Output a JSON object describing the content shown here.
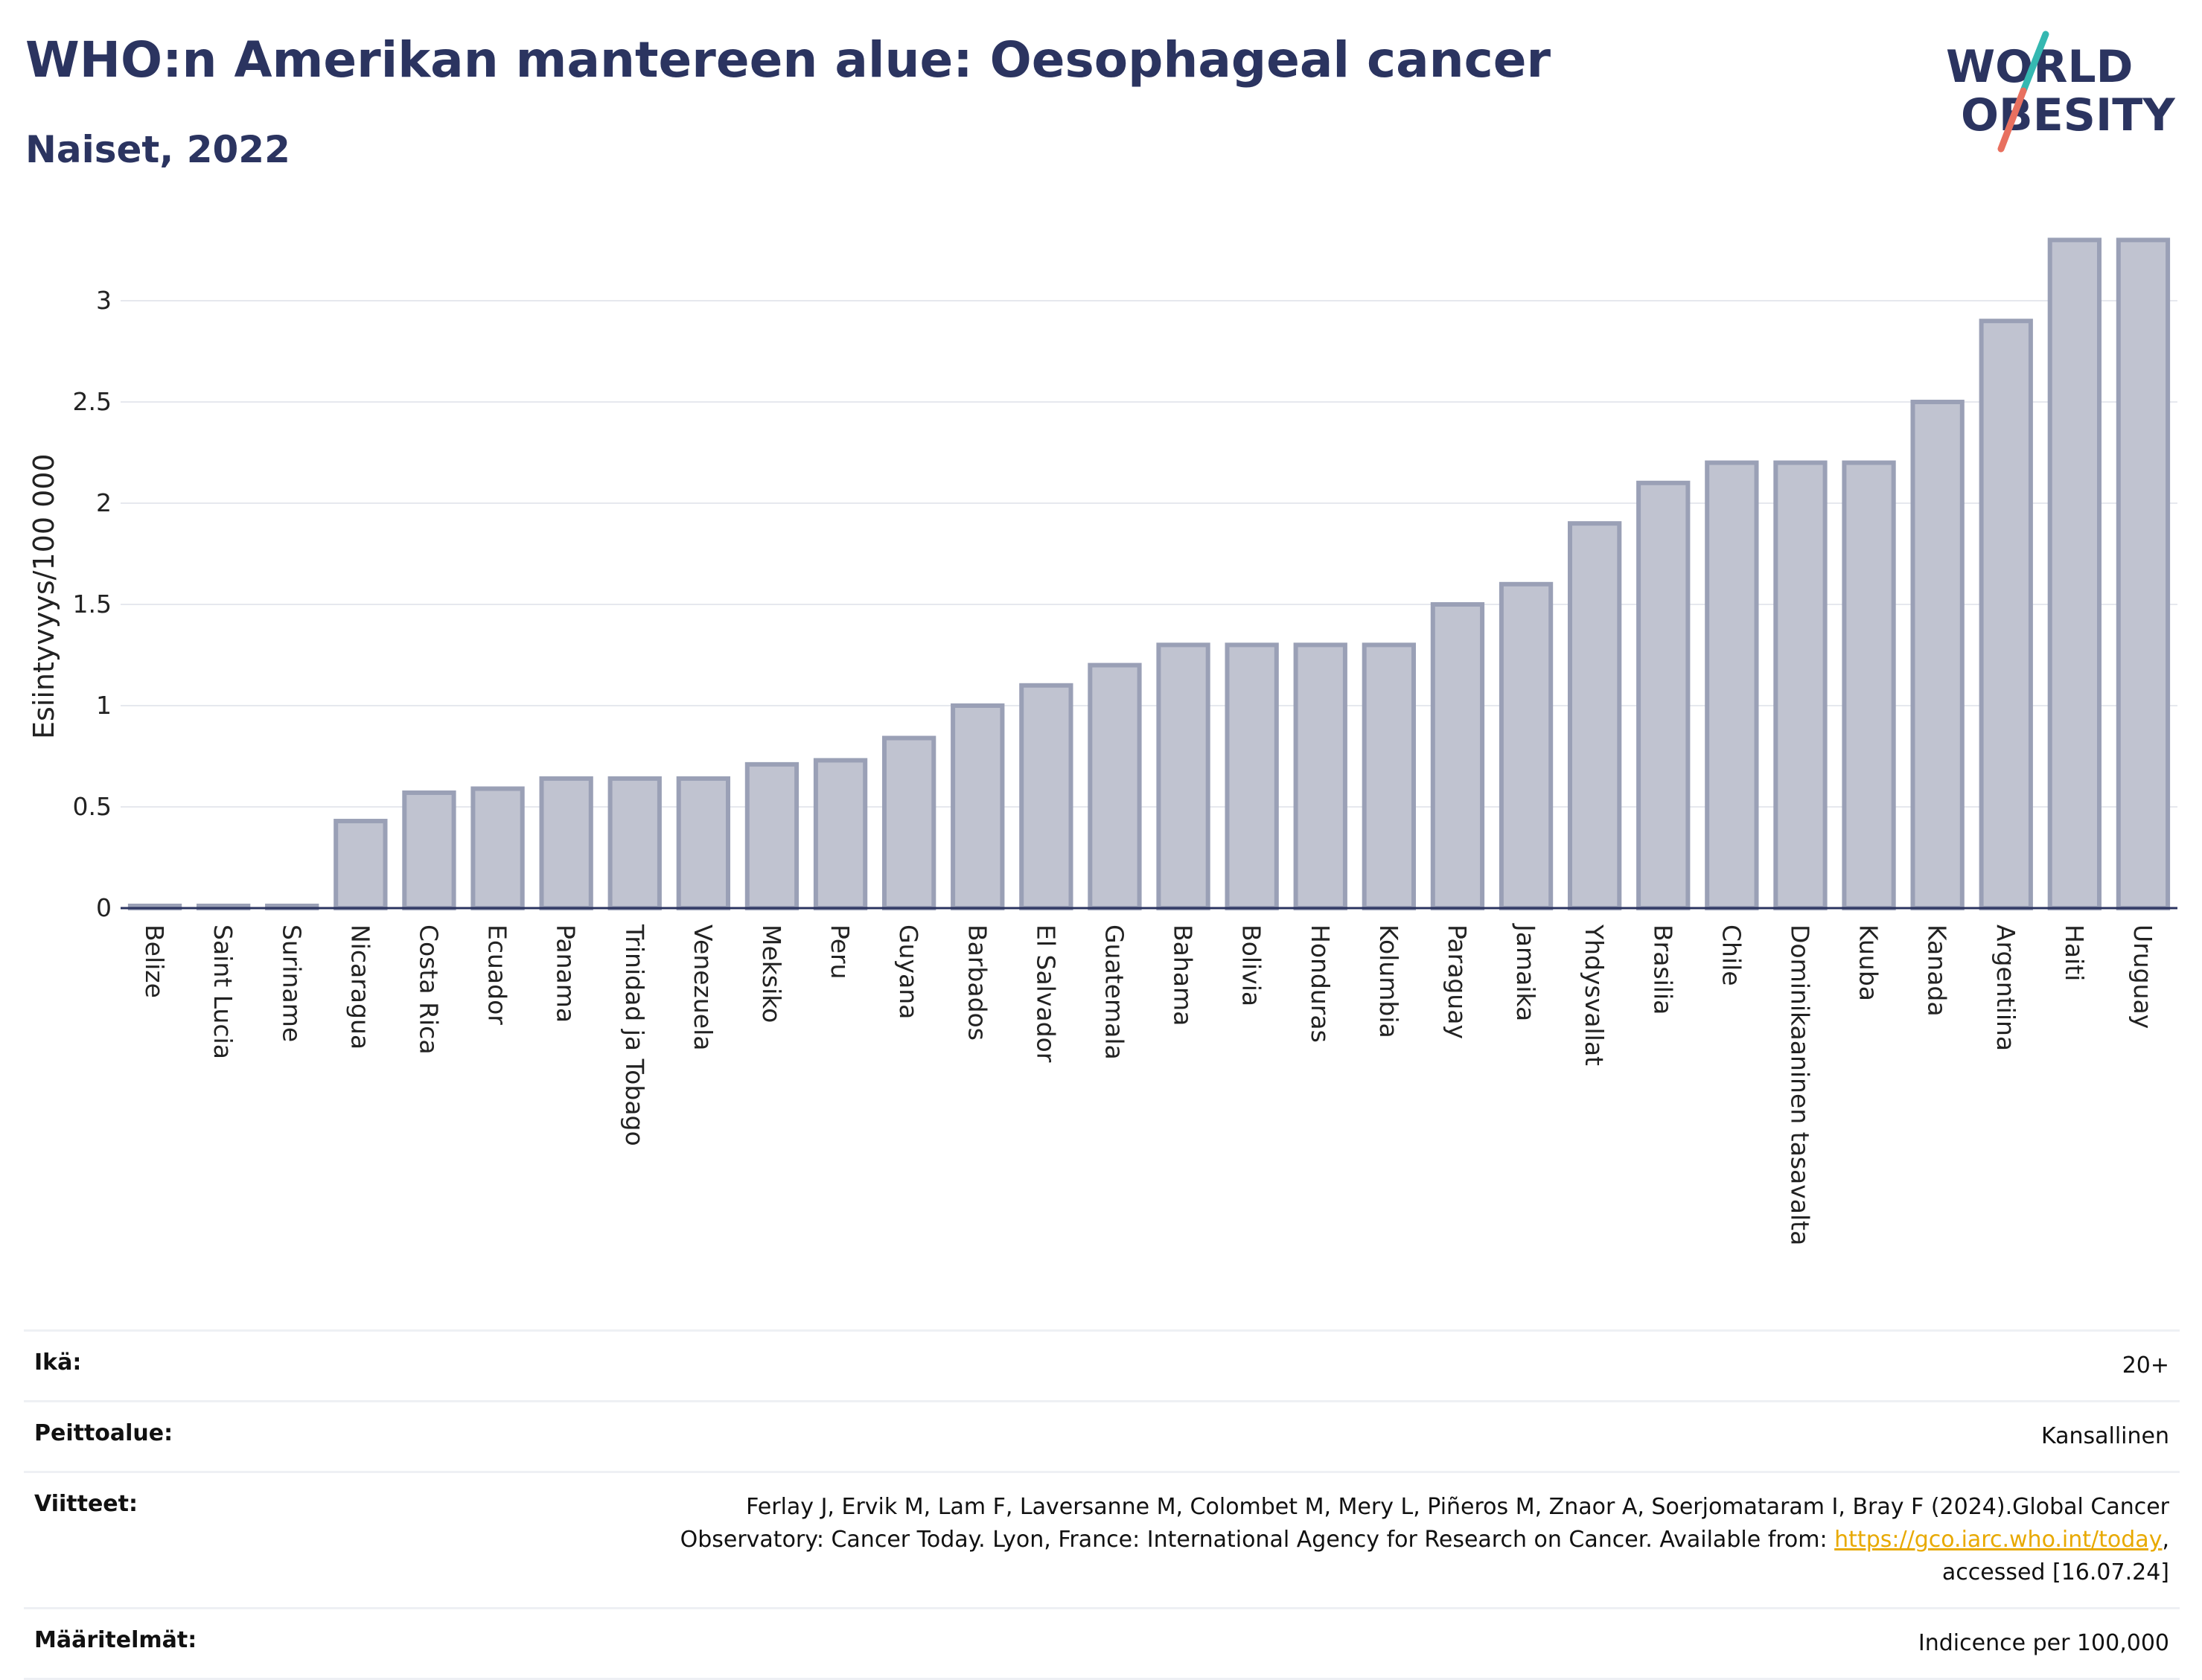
{
  "header": {
    "title": "WHO:n Amerikan mantereen alue: Oesophageal cancer",
    "subtitle": "Naiset, 2022",
    "logo_line1": "WORLD",
    "logo_line2": "OBESITY"
  },
  "chart_data": {
    "type": "bar",
    "ylabel": "Esiintyvyys/100 000",
    "xlabel": "",
    "ylim": [
      0,
      3.3
    ],
    "yticks": [
      "0",
      "0.5",
      "1",
      "1.5",
      "2",
      "2.5",
      "3"
    ],
    "grid": true,
    "bar_color": "#c0c3d0",
    "bar_edge_color": "#9aa0b6",
    "categories": [
      "Belize",
      "Saint Lucia",
      "Suriname",
      "Nicaragua",
      "Costa Rica",
      "Ecuador",
      "Panama",
      "Trinidad ja Tobago",
      "Venezuela",
      "Meksiko",
      "Peru",
      "Guyana",
      "Barbados",
      "El Salvador",
      "Guatemala",
      "Bahama",
      "Bolivia",
      "Honduras",
      "Kolumbia",
      "Paraguay",
      "Jamaika",
      "Yhdysvallat",
      "Brasilia",
      "Chile",
      "Dominikaaninen tasavalta",
      "Kuuba",
      "Kanada",
      "Argentiina",
      "Haiti",
      "Uruguay"
    ],
    "values": [
      0,
      0,
      0,
      0.43,
      0.57,
      0.59,
      0.64,
      0.64,
      0.64,
      0.71,
      0.73,
      0.84,
      1.0,
      1.1,
      1.2,
      1.3,
      1.3,
      1.3,
      1.3,
      1.5,
      1.6,
      1.9,
      2.1,
      2.2,
      2.2,
      2.2,
      2.5,
      2.9,
      3.3,
      3.3
    ]
  },
  "info_table": {
    "age_label": "Ikä:",
    "age_value": "20+",
    "coverage_label": "Peittoalue:",
    "coverage_value": "Kansallinen",
    "references_label": "Viitteet:",
    "references_line1": "Ferlay J, Ervik M, Lam F, Laversanne M, Colombet M, Mery L, Piñeros M, Znaor A, Soerjomataram I, Bray F (2024).Global Cancer",
    "references_line2_pre": "Observatory: Cancer Today. Lyon, France: International Agency for Research on Cancer. Available from: ",
    "references_link": "https://gco.iarc.who.int/today",
    "references_line2_post": ",",
    "references_line3": "accessed [16.07.24]",
    "definitions_label": "Määritelmät:",
    "definitions_value": "Indicence per 100,000"
  }
}
